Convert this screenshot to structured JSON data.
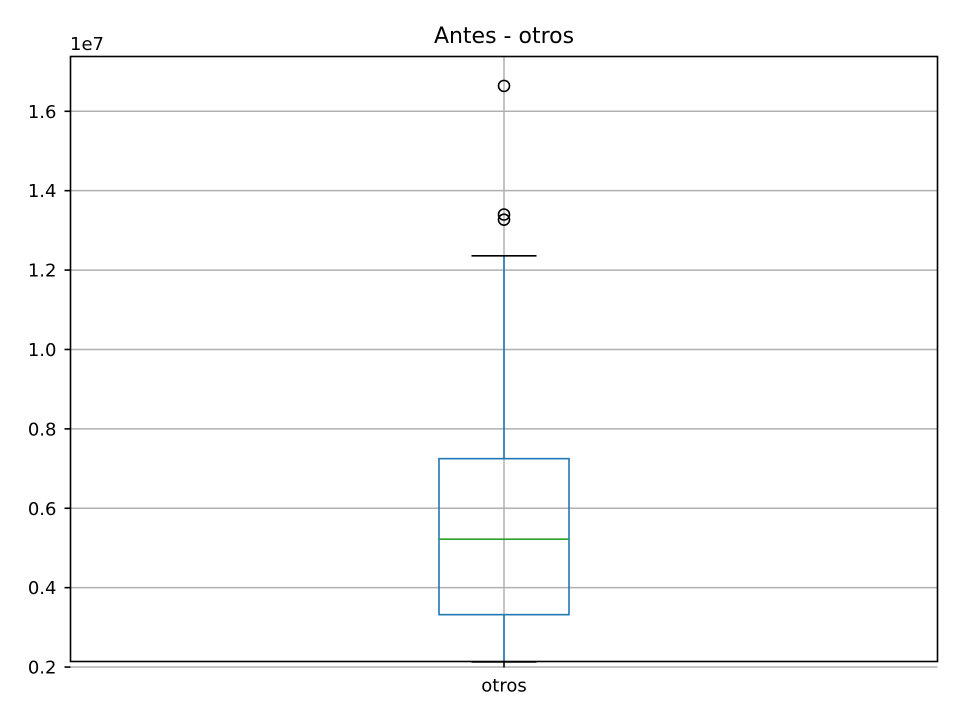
{
  "chart_data": {
    "type": "boxplot",
    "title": "Antes - otros",
    "xlabel": "",
    "ylabel": "",
    "y_offset_label": "1e7",
    "y_scale_factor": 10000000,
    "ylim": [
      2140000,
      17380000
    ],
    "y_ticks": [
      2000000,
      4000000,
      6000000,
      8000000,
      10000000,
      12000000,
      14000000,
      16000000
    ],
    "y_tick_labels": [
      "0.2",
      "0.4",
      "0.6",
      "0.8",
      "1.0",
      "1.2",
      "1.4",
      "1.6"
    ],
    "grid": true,
    "categories": [
      "otros"
    ],
    "boxes": [
      {
        "category": "otros",
        "whisker_low": 2130000,
        "q1": 3320000,
        "median": 5220000,
        "q3": 7250000,
        "whisker_high": 12360000,
        "outliers": [
          13270000,
          13400000,
          16640000
        ]
      }
    ],
    "colors": {
      "box": "#1f77b4",
      "whisker": "#1f77b4",
      "median": "#2ca02c",
      "cap": "#000000",
      "outlier": "#000000",
      "grid": "#b0b0b0"
    }
  }
}
